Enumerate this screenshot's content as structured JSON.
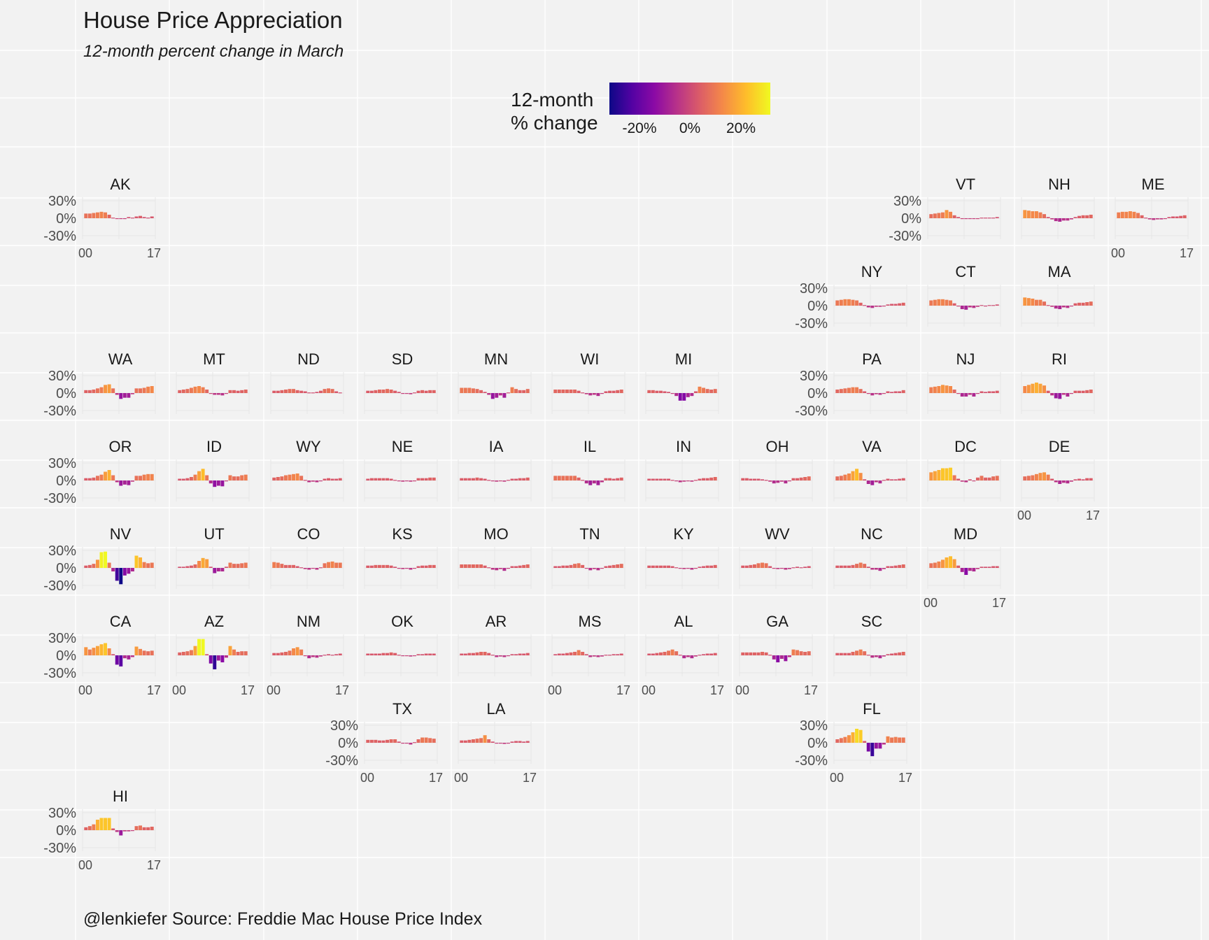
{
  "title": "House Price Appreciation",
  "subtitle": "12-month percent change in March",
  "caption": "@lenkiefer Source: Freddie Mac House Price Index",
  "legend": {
    "title_line1": "12-month",
    "title_line2": "% change",
    "ticks": [
      "-20%",
      "0%",
      "20%"
    ],
    "colors": [
      "#0d0887",
      "#5302a3",
      "#8b0aa5",
      "#b83289",
      "#db5c68",
      "#f48849",
      "#febd2a",
      "#f0f921"
    ]
  },
  "axis": {
    "y_ticks": [
      "30%",
      "0%",
      "-30%"
    ],
    "x_ticks": [
      "00",
      "17"
    ]
  },
  "chart_data": {
    "type": "bar",
    "facet": "state",
    "x": [
      2000,
      2001,
      2002,
      2003,
      2004,
      2005,
      2006,
      2007,
      2008,
      2009,
      2010,
      2011,
      2012,
      2013,
      2014,
      2015,
      2016,
      2017
    ],
    "ylim": [
      -30,
      30
    ],
    "color_scale": "plasma",
    "states": [
      {
        "name": "AK",
        "values": [
          8,
          8,
          9,
          10,
          11,
          10,
          6,
          1,
          0,
          -1,
          -1,
          2,
          1,
          3,
          4,
          2,
          1,
          3
        ]
      },
      {
        "name": "VT",
        "values": [
          7,
          8,
          9,
          10,
          14,
          11,
          5,
          2,
          0,
          -1,
          -1,
          -1,
          0,
          1,
          1,
          1,
          1,
          2
        ]
      },
      {
        "name": "NH",
        "values": [
          14,
          13,
          12,
          12,
          10,
          7,
          2,
          -2,
          -5,
          -6,
          -4,
          -4,
          -2,
          2,
          4,
          5,
          5,
          6
        ]
      },
      {
        "name": "ME",
        "values": [
          10,
          11,
          11,
          12,
          11,
          9,
          5,
          1,
          -2,
          -3,
          -2,
          -2,
          0,
          2,
          3,
          3,
          4,
          5
        ]
      },
      {
        "name": "NY",
        "values": [
          9,
          10,
          11,
          11,
          10,
          9,
          5,
          1,
          -3,
          -4,
          -2,
          -2,
          0,
          2,
          3,
          3,
          4,
          5
        ]
      },
      {
        "name": "CT",
        "values": [
          9,
          10,
          11,
          11,
          10,
          9,
          4,
          0,
          -6,
          -7,
          -3,
          -4,
          -2,
          1,
          0,
          1,
          1,
          2
        ]
      },
      {
        "name": "MA",
        "values": [
          14,
          13,
          12,
          10,
          10,
          7,
          1,
          -2,
          -5,
          -6,
          -3,
          -4,
          -1,
          4,
          5,
          5,
          6,
          7
        ]
      },
      {
        "name": "WA",
        "values": [
          5,
          5,
          6,
          8,
          10,
          14,
          15,
          8,
          -3,
          -10,
          -8,
          -8,
          -2,
          8,
          8,
          9,
          11,
          12
        ]
      },
      {
        "name": "MT",
        "values": [
          5,
          6,
          7,
          9,
          11,
          12,
          10,
          6,
          0,
          -3,
          -3,
          -4,
          -1,
          5,
          5,
          4,
          5,
          6
        ]
      },
      {
        "name": "ND",
        "values": [
          4,
          4,
          5,
          6,
          7,
          7,
          5,
          4,
          3,
          1,
          1,
          2,
          4,
          7,
          8,
          7,
          3,
          1
        ]
      },
      {
        "name": "SD",
        "values": [
          4,
          4,
          5,
          6,
          6,
          7,
          6,
          4,
          2,
          -1,
          -1,
          -2,
          1,
          4,
          5,
          4,
          5,
          5
        ]
      },
      {
        "name": "MN",
        "values": [
          9,
          9,
          9,
          8,
          7,
          5,
          2,
          -3,
          -10,
          -8,
          -4,
          -8,
          1,
          10,
          7,
          5,
          5,
          7
        ]
      },
      {
        "name": "WI",
        "values": [
          6,
          6,
          6,
          6,
          6,
          6,
          4,
          1,
          -2,
          -4,
          -3,
          -5,
          -1,
          3,
          4,
          4,
          5,
          6
        ]
      },
      {
        "name": "MI",
        "values": [
          5,
          5,
          4,
          4,
          3,
          2,
          -1,
          -5,
          -13,
          -13,
          -7,
          -5,
          3,
          11,
          9,
          7,
          6,
          7
        ]
      },
      {
        "name": "PA",
        "values": [
          6,
          7,
          8,
          9,
          10,
          10,
          7,
          3,
          -1,
          -4,
          -2,
          -3,
          0,
          3,
          2,
          3,
          3,
          5
        ]
      },
      {
        "name": "NJ",
        "values": [
          10,
          11,
          12,
          14,
          13,
          12,
          6,
          0,
          -6,
          -6,
          -3,
          -6,
          -1,
          3,
          2,
          3,
          3,
          4
        ]
      },
      {
        "name": "RI",
        "values": [
          12,
          14,
          16,
          18,
          16,
          13,
          4,
          -4,
          -9,
          -10,
          -3,
          -6,
          -1,
          4,
          4,
          4,
          5,
          6
        ]
      },
      {
        "name": "OR",
        "values": [
          4,
          4,
          5,
          8,
          10,
          15,
          18,
          9,
          -3,
          -9,
          -7,
          -8,
          -2,
          8,
          8,
          10,
          11,
          11
        ]
      },
      {
        "name": "ID",
        "values": [
          3,
          3,
          4,
          6,
          10,
          16,
          20,
          9,
          -5,
          -11,
          -9,
          -10,
          -1,
          9,
          7,
          7,
          9,
          10
        ]
      },
      {
        "name": "WY",
        "values": [
          5,
          6,
          7,
          9,
          10,
          11,
          12,
          8,
          1,
          -3,
          -2,
          -3,
          -1,
          3,
          4,
          3,
          3,
          4
        ]
      },
      {
        "name": "NE",
        "values": [
          3,
          4,
          4,
          4,
          4,
          4,
          3,
          1,
          -1,
          -2,
          -1,
          -2,
          0,
          4,
          4,
          4,
          5,
          5
        ]
      },
      {
        "name": "IA",
        "values": [
          4,
          4,
          4,
          4,
          5,
          4,
          3,
          1,
          -1,
          -2,
          0,
          -2,
          1,
          3,
          3,
          4,
          4,
          5
        ]
      },
      {
        "name": "IL",
        "values": [
          8,
          8,
          8,
          8,
          8,
          8,
          5,
          1,
          -5,
          -8,
          -5,
          -8,
          -3,
          4,
          4,
          3,
          4,
          5
        ]
      },
      {
        "name": "IN",
        "values": [
          3,
          3,
          3,
          3,
          3,
          3,
          1,
          -1,
          -3,
          -2,
          -1,
          -2,
          1,
          3,
          4,
          4,
          5,
          6
        ]
      },
      {
        "name": "OH",
        "values": [
          4,
          4,
          3,
          3,
          3,
          2,
          1,
          -2,
          -5,
          -4,
          -2,
          -5,
          -1,
          4,
          4,
          5,
          6,
          7
        ]
      },
      {
        "name": "VA",
        "values": [
          7,
          8,
          10,
          12,
          16,
          20,
          13,
          2,
          -6,
          -8,
          -3,
          -5,
          1,
          3,
          2,
          2,
          3,
          4
        ]
      },
      {
        "name": "DC",
        "values": [
          14,
          16,
          18,
          21,
          21,
          22,
          9,
          3,
          -2,
          -3,
          2,
          0,
          5,
          8,
          5,
          5,
          7,
          8
        ]
      },
      {
        "name": "DE",
        "values": [
          7,
          8,
          9,
          11,
          13,
          14,
          10,
          3,
          -3,
          -6,
          -4,
          -5,
          -2,
          2,
          3,
          2,
          4,
          4
        ]
      },
      {
        "name": "NV",
        "values": [
          4,
          5,
          7,
          14,
          27,
          28,
          9,
          -6,
          -22,
          -28,
          -13,
          -10,
          -6,
          21,
          18,
          10,
          8,
          9
        ]
      },
      {
        "name": "UT",
        "values": [
          2,
          2,
          3,
          4,
          6,
          12,
          17,
          15,
          2,
          -9,
          -6,
          -6,
          2,
          9,
          7,
          7,
          8,
          9
        ]
      },
      {
        "name": "CO",
        "values": [
          10,
          9,
          7,
          5,
          5,
          5,
          3,
          1,
          -2,
          -3,
          -1,
          -3,
          1,
          8,
          10,
          11,
          9,
          9
        ]
      },
      {
        "name": "KS",
        "values": [
          4,
          4,
          5,
          5,
          5,
          5,
          4,
          2,
          -1,
          -2,
          -1,
          -3,
          0,
          3,
          4,
          4,
          5,
          5
        ]
      },
      {
        "name": "MO",
        "values": [
          6,
          6,
          6,
          6,
          6,
          6,
          4,
          1,
          -3,
          -4,
          -2,
          -5,
          -1,
          3,
          3,
          4,
          5,
          6
        ]
      },
      {
        "name": "TN",
        "values": [
          3,
          3,
          4,
          4,
          5,
          7,
          8,
          5,
          0,
          -4,
          -2,
          -4,
          0,
          3,
          4,
          5,
          6,
          7
        ]
      },
      {
        "name": "KY",
        "values": [
          4,
          4,
          4,
          4,
          4,
          4,
          3,
          1,
          -1,
          -2,
          -1,
          -3,
          0,
          2,
          3,
          4,
          4,
          5
        ]
      },
      {
        "name": "WV",
        "values": [
          4,
          4,
          5,
          6,
          8,
          9,
          8,
          3,
          0,
          -2,
          -1,
          -3,
          -2,
          1,
          2,
          1,
          2,
          3
        ]
      },
      {
        "name": "NC",
        "values": [
          4,
          4,
          4,
          4,
          5,
          7,
          9,
          7,
          2,
          -3,
          -3,
          -5,
          -2,
          3,
          3,
          4,
          5,
          6
        ]
      },
      {
        "name": "MD",
        "values": [
          8,
          9,
          11,
          14,
          18,
          20,
          15,
          4,
          -7,
          -12,
          -5,
          -6,
          -2,
          2,
          2,
          2,
          3,
          3
        ]
      },
      {
        "name": "CA",
        "values": [
          14,
          10,
          13,
          16,
          19,
          21,
          12,
          2,
          -16,
          -19,
          -5,
          -7,
          -3,
          15,
          11,
          8,
          7,
          8
        ]
      },
      {
        "name": "AZ",
        "values": [
          5,
          6,
          7,
          9,
          16,
          28,
          28,
          2,
          -14,
          -24,
          -9,
          -12,
          -4,
          16,
          10,
          6,
          7,
          7
        ]
      },
      {
        "name": "NM",
        "values": [
          4,
          4,
          5,
          6,
          8,
          12,
          14,
          10,
          0,
          -5,
          -3,
          -4,
          -2,
          1,
          2,
          1,
          2,
          3
        ]
      },
      {
        "name": "OK",
        "values": [
          3,
          3,
          3,
          3,
          4,
          4,
          5,
          4,
          1,
          -1,
          0,
          -2,
          0,
          2,
          2,
          3,
          3,
          3
        ]
      },
      {
        "name": "AR",
        "values": [
          3,
          3,
          4,
          4,
          5,
          6,
          6,
          4,
          1,
          -3,
          -2,
          -3,
          -1,
          2,
          2,
          3,
          3,
          4
        ]
      },
      {
        "name": "MS",
        "values": [
          2,
          3,
          3,
          4,
          5,
          6,
          9,
          6,
          2,
          -3,
          -2,
          -3,
          -2,
          1,
          1,
          2,
          2,
          3
        ]
      },
      {
        "name": "AL",
        "values": [
          3,
          3,
          4,
          5,
          6,
          8,
          10,
          7,
          1,
          -5,
          -3,
          -5,
          -2,
          1,
          2,
          3,
          3,
          4
        ]
      },
      {
        "name": "GA",
        "values": [
          5,
          5,
          5,
          5,
          5,
          6,
          5,
          1,
          -7,
          -12,
          -6,
          -10,
          -3,
          10,
          9,
          7,
          6,
          7
        ]
      },
      {
        "name": "SC",
        "values": [
          4,
          4,
          4,
          4,
          6,
          8,
          10,
          7,
          1,
          -4,
          -3,
          -5,
          -2,
          2,
          3,
          4,
          5,
          6
        ]
      },
      {
        "name": "TX",
        "values": [
          5,
          5,
          5,
          4,
          4,
          5,
          6,
          6,
          2,
          -1,
          -1,
          -3,
          1,
          6,
          9,
          9,
          8,
          7
        ]
      },
      {
        "name": "LA",
        "values": [
          4,
          4,
          5,
          6,
          7,
          8,
          13,
          6,
          2,
          -1,
          -1,
          -2,
          -1,
          2,
          3,
          3,
          2,
          3
        ]
      },
      {
        "name": "FL",
        "values": [
          6,
          8,
          10,
          13,
          18,
          24,
          22,
          3,
          -15,
          -23,
          -10,
          -10,
          -3,
          11,
          9,
          10,
          9,
          9
        ]
      },
      {
        "name": "HI",
        "values": [
          5,
          7,
          10,
          18,
          21,
          21,
          21,
          3,
          -3,
          -9,
          -2,
          -2,
          -1,
          7,
          8,
          5,
          5,
          6
        ]
      }
    ]
  }
}
